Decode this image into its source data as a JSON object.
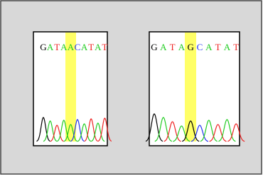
{
  "panels": [
    {
      "bases": [
        "G",
        "A",
        "T",
        "A",
        "A",
        "C",
        "A",
        "T",
        "A",
        "T"
      ]
    },
    {
      "bases": [
        "G",
        "A",
        "T",
        "A",
        "G",
        "C",
        "A",
        "T",
        "A",
        "T"
      ]
    }
  ],
  "base_colors": {
    "G": "#000000",
    "A": "#22cc22",
    "T": "#ee2222",
    "C": "#2233ee"
  }
}
